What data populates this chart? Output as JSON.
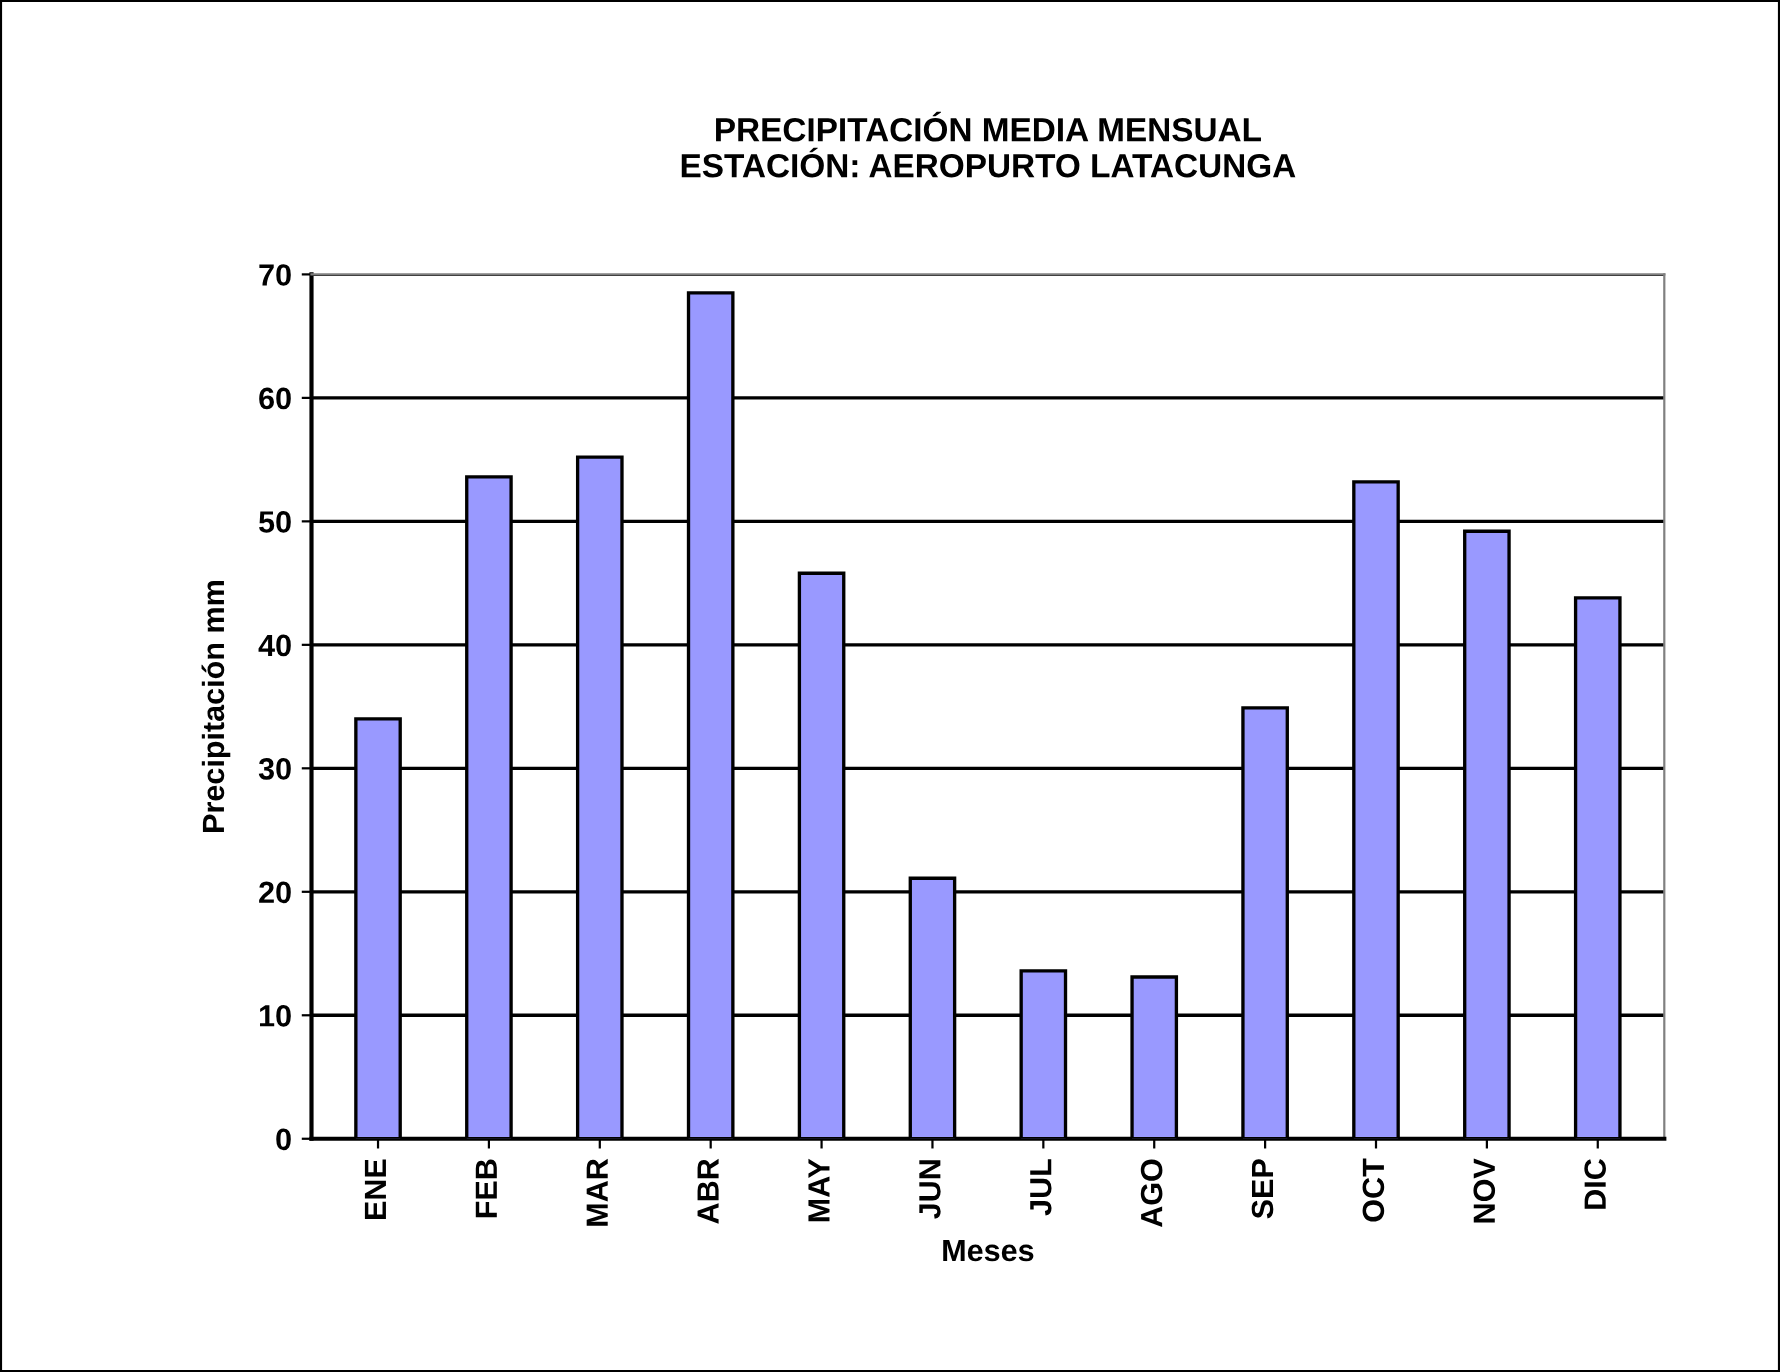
{
  "chart_data": {
    "type": "bar",
    "title": "PRECIPITACIÓN MEDIA MENSUAL\nESTACIÓN: AEROPURTO LATACUNGA",
    "xlabel": "Meses",
    "ylabel": "Precipitación mm",
    "categories": [
      "ENE",
      "FEB",
      "MAR",
      "ABR",
      "MAY",
      "JUN",
      "JUL",
      "AGO",
      "SEP",
      "OCT",
      "NOV",
      "DIC"
    ],
    "values": [
      34.0,
      53.6,
      55.2,
      68.5,
      45.8,
      21.1,
      13.6,
      13.1,
      34.9,
      53.2,
      49.2,
      43.8
    ],
    "color": "#9999ff",
    "ylim": [
      0,
      70
    ],
    "yticks": [
      0,
      10,
      20,
      30,
      40,
      50,
      60,
      70
    ],
    "grid": "y"
  }
}
